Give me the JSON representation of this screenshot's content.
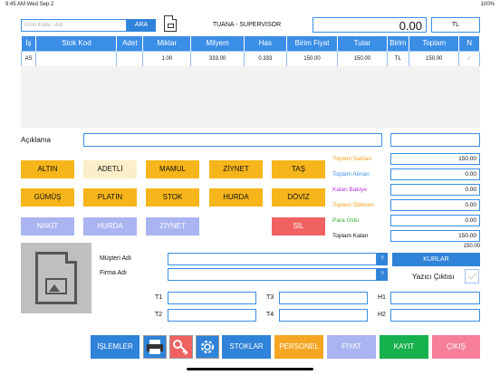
{
  "status": {
    "time": "9:45 AM",
    "date": "Wed Sep 2",
    "battery": "100%"
  },
  "search": {
    "placeholder": "Ürün Kodu - Adı",
    "button": "ARA"
  },
  "header": {
    "title": "TUANA - SUPERVISOR",
    "total": "0.00",
    "currency": "TL"
  },
  "table": {
    "columns": [
      "İş",
      "Stok Kod",
      "Adet",
      "Miktar",
      "Milyem",
      "Has",
      "Birim Fiyat",
      "Tutar",
      "Birim",
      "Toplam",
      "N"
    ],
    "rows": [
      [
        "AS",
        "",
        "",
        "1.00",
        "333.00",
        "0.333",
        "150.00",
        "150.00",
        "TL",
        "150.00",
        ""
      ]
    ]
  },
  "aciklama": {
    "label": "Açıklama",
    "value": "",
    "value2": ""
  },
  "product_buttons": [
    "ALTIN",
    "ADETLİ",
    "MAMUL",
    "ZİYNET",
    "TAŞ",
    "GÜMÜŞ",
    "PLATİN",
    "STOK",
    "HURDA",
    "DÖVİZ"
  ],
  "payment_buttons": [
    "NAKİT",
    "HURDA",
    "ZİYNET"
  ],
  "sil_button": "SİL",
  "summary": [
    {
      "label": "Toplam Satılan",
      "value": "150.00",
      "color": "#f6a21e"
    },
    {
      "label": "Toplam Alınan",
      "value": "0.00",
      "color": "#3a8ee6"
    },
    {
      "label": "Kalan Bakiye",
      "value": "0.00",
      "color": "#b23ad6"
    },
    {
      "label": "Toplam Ödenen",
      "value": "0.00",
      "color": "#f6a21e"
    },
    {
      "label": "Para Üstü",
      "value": "0.00",
      "color": "#2fa82f"
    },
    {
      "label": "Toplam Kalan",
      "value": "150.00",
      "color": "#111111"
    }
  ],
  "extra_value": "150.00",
  "customer": {
    "musteri_label": "Müşteri Adı",
    "firma_label": "Firma Adı",
    "q": "?"
  },
  "kurlar_button": "KURLAR",
  "yazici_label": "Yazıcı Çıktısı",
  "t_fields": [
    "T1",
    "T2",
    "T3",
    "T4",
    "H1",
    "H2"
  ],
  "bottom_buttons": {
    "islemler": "İŞLEMLER",
    "stoklar": "STOKLAR",
    "personel": "PERSONEL",
    "fiyat": "FİYAT",
    "kayit": "KAYIT",
    "cikis": "ÇIKIŞ"
  },
  "colors": {
    "accent": "#3a8ee6",
    "gold": "#f6b51a",
    "lavender": "#a9b4f1",
    "red": "#f06161",
    "green": "#16b04c",
    "pink": "#f77f9a",
    "orange": "#f5a623"
  }
}
